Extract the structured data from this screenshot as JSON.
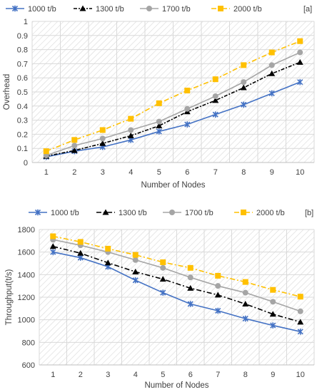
{
  "chart_data": [
    {
      "type": "line",
      "panel_label": "[a]",
      "x": [
        1,
        2,
        3,
        4,
        5,
        6,
        7,
        8,
        9,
        10
      ],
      "xlabel": "Number of Nodes",
      "ylabel": "Overhead",
      "ylim": [
        0,
        1
      ],
      "yticks": [
        0,
        0.1,
        0.2,
        0.3,
        0.4,
        0.5,
        0.6,
        0.7,
        0.8,
        0.9,
        1
      ],
      "grid": true,
      "legend": "top",
      "series": [
        {
          "name": "1000 t/b",
          "color": "#4472C4",
          "dash": "solid",
          "marker": "x-star",
          "values": [
            0.04,
            0.08,
            0.11,
            0.16,
            0.22,
            0.27,
            0.34,
            0.41,
            0.49,
            0.57
          ]
        },
        {
          "name": "1300 t/b",
          "color": "#000000",
          "dash": "dashdot-short",
          "marker": "triangle",
          "values": [
            0.045,
            0.085,
            0.135,
            0.19,
            0.26,
            0.36,
            0.44,
            0.53,
            0.63,
            0.71
          ]
        },
        {
          "name": "1700 t/b",
          "color": "#A5A5A5",
          "dash": "solid",
          "marker": "circle",
          "values": [
            0.05,
            0.12,
            0.17,
            0.23,
            0.29,
            0.38,
            0.47,
            0.57,
            0.69,
            0.78
          ]
        },
        {
          "name": "2000 t/b",
          "color": "#FFC000",
          "dash": "dashdot",
          "marker": "square",
          "values": [
            0.08,
            0.16,
            0.23,
            0.31,
            0.42,
            0.51,
            0.59,
            0.69,
            0.78,
            0.86
          ]
        }
      ]
    },
    {
      "type": "line",
      "panel_label": "[b]",
      "x": [
        1,
        2,
        3,
        4,
        5,
        6,
        7,
        8,
        9,
        10
      ],
      "xlabel": "Number of Nodes",
      "ylabel": "Throughput(t/s)",
      "ylim": [
        600,
        1800
      ],
      "yticks": [
        600,
        800,
        1000,
        1200,
        1400,
        1600,
        1800
      ],
      "grid": true,
      "legend": "top",
      "series": [
        {
          "name": "1000 t/b",
          "color": "#4472C4",
          "dash": "solid",
          "marker": "x-star",
          "values": [
            1600,
            1550,
            1470,
            1350,
            1240,
            1140,
            1080,
            1010,
            950,
            895
          ]
        },
        {
          "name": "1300 t/b",
          "color": "#000000",
          "dash": "dashdot",
          "marker": "triangle",
          "values": [
            1650,
            1590,
            1505,
            1425,
            1360,
            1280,
            1220,
            1140,
            1050,
            980
          ]
        },
        {
          "name": "1700 t/b",
          "color": "#A5A5A5",
          "dash": "solid",
          "marker": "circle",
          "values": [
            1710,
            1660,
            1600,
            1530,
            1460,
            1375,
            1300,
            1240,
            1160,
            1075
          ]
        },
        {
          "name": "2000 t/b",
          "color": "#FFC000",
          "dash": "dashdot",
          "marker": "square",
          "values": [
            1740,
            1690,
            1630,
            1575,
            1510,
            1460,
            1390,
            1335,
            1265,
            1205
          ]
        }
      ]
    }
  ]
}
